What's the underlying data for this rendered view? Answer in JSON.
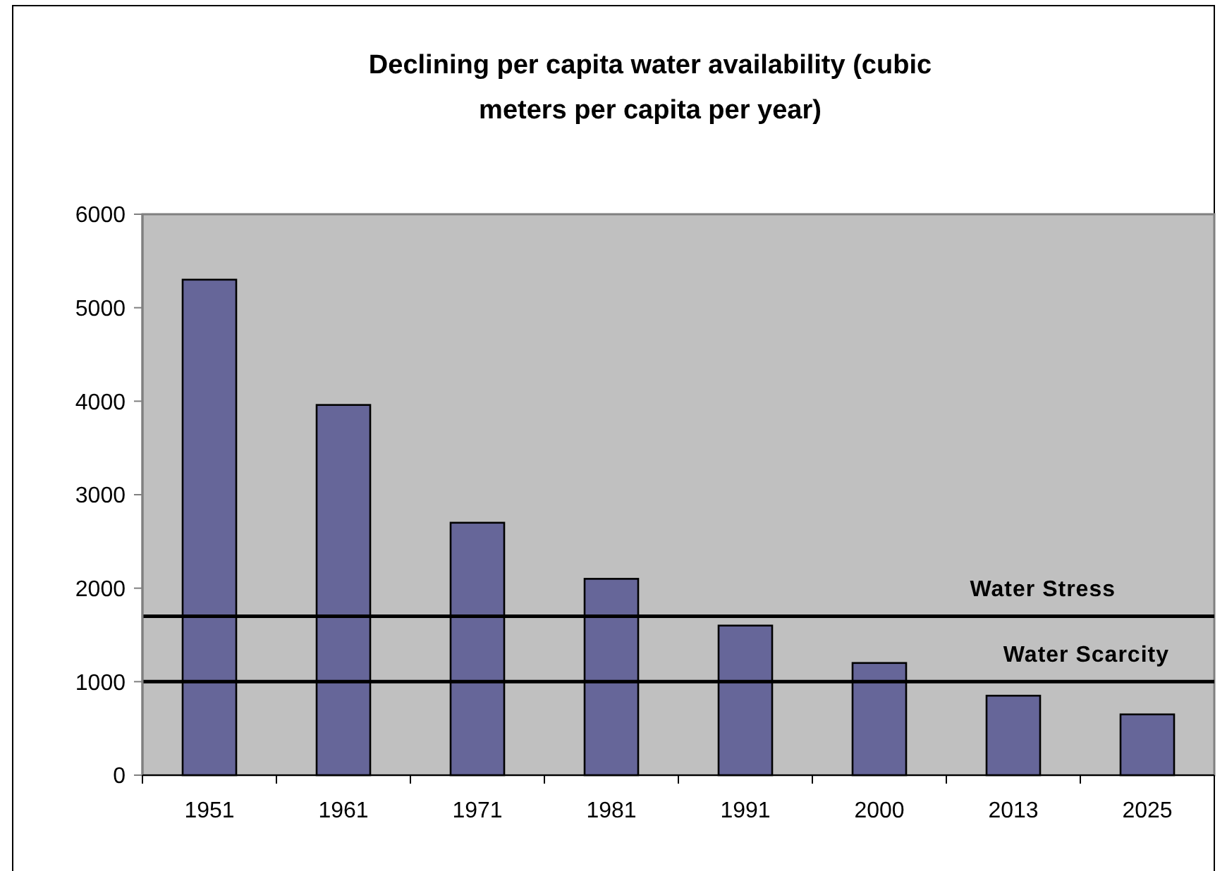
{
  "chart_data": {
    "type": "bar",
    "title": "Declining per capita water availability (cubic meters per capita per year)",
    "categories": [
      "1951",
      "1961",
      "1971",
      "1981",
      "1991",
      "2000",
      "2013",
      "2025"
    ],
    "values": [
      5300,
      3960,
      2700,
      2100,
      1600,
      1200,
      850,
      650
    ],
    "color": "#666699",
    "ylim": [
      0,
      6000
    ],
    "yticks": [
      0,
      1000,
      2000,
      3000,
      4000,
      5000,
      6000
    ],
    "ref_lines": [
      {
        "axis": "y",
        "value": 1700,
        "label": "Water Stress",
        "color": "#000000"
      },
      {
        "axis": "y",
        "value": 1000,
        "label": "Water Scarcity",
        "color": "#000000"
      }
    ],
    "grid": false
  }
}
